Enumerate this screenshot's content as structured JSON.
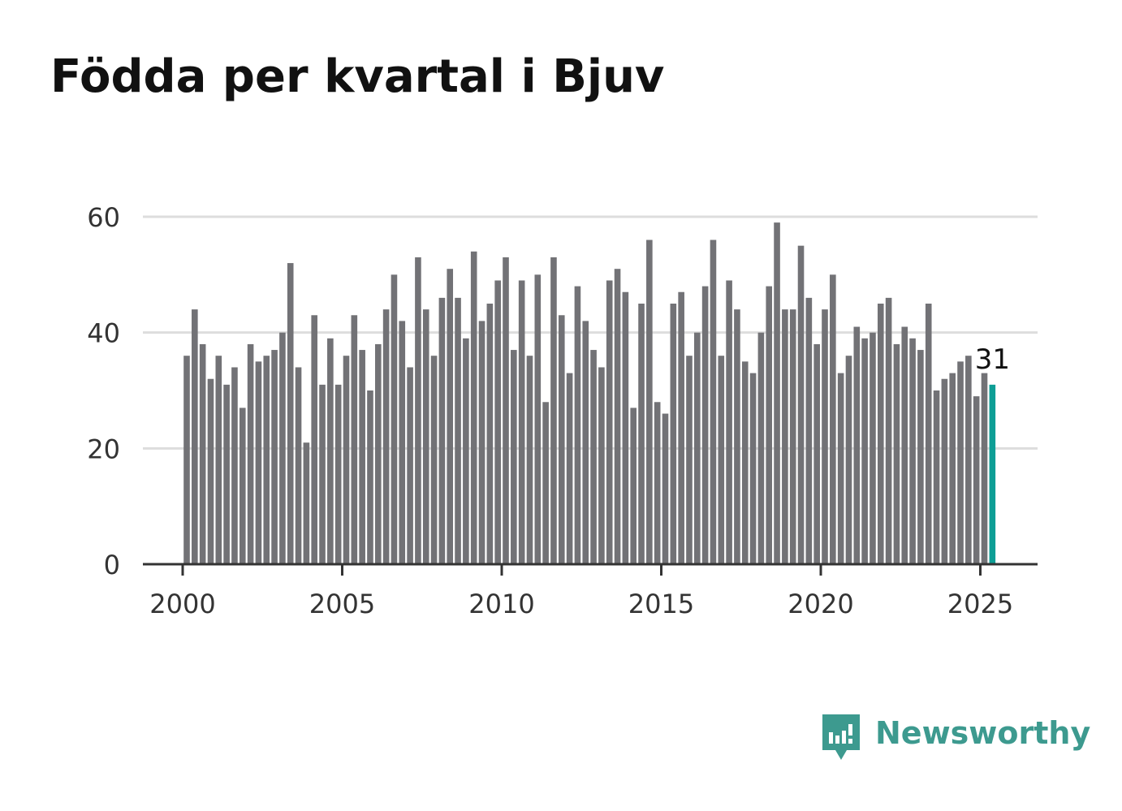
{
  "title": "Födda per kvartal i Bjuv",
  "brand": {
    "name": "Newsworthy",
    "color": "#3d9a8f",
    "icon": "newsworthy-logo-icon"
  },
  "colors": {
    "bar": "#727276",
    "highlight": "#0e9e95",
    "grid": "#dddddd",
    "axis": "#333333"
  },
  "chart_data": {
    "type": "bar",
    "x_start": 2000.0,
    "x_step": 0.25,
    "x_ticks": [
      "2000",
      "2005",
      "2010",
      "2015",
      "2020",
      "2025"
    ],
    "y_ticks": [
      "0",
      "20",
      "40",
      "60"
    ],
    "ylim": [
      0,
      60
    ],
    "grid": true,
    "values": [
      36,
      44,
      38,
      32,
      36,
      31,
      34,
      27,
      38,
      35,
      36,
      37,
      40,
      52,
      34,
      21,
      43,
      31,
      39,
      31,
      36,
      43,
      37,
      30,
      38,
      44,
      50,
      42,
      34,
      53,
      44,
      36,
      46,
      51,
      46,
      39,
      54,
      42,
      45,
      49,
      53,
      37,
      49,
      36,
      50,
      28,
      53,
      43,
      33,
      48,
      42,
      37,
      34,
      49,
      51,
      47,
      27,
      45,
      56,
      28,
      26,
      45,
      47,
      36,
      40,
      48,
      56,
      36,
      49,
      44,
      35,
      33,
      40,
      48,
      59,
      44,
      44,
      55,
      46,
      38,
      44,
      50,
      33,
      36,
      41,
      39,
      40,
      45,
      46,
      38,
      41,
      39,
      37,
      45,
      30,
      32,
      33,
      35,
      36,
      29,
      33,
      31
    ],
    "highlight_last": true,
    "annotation": "31"
  }
}
